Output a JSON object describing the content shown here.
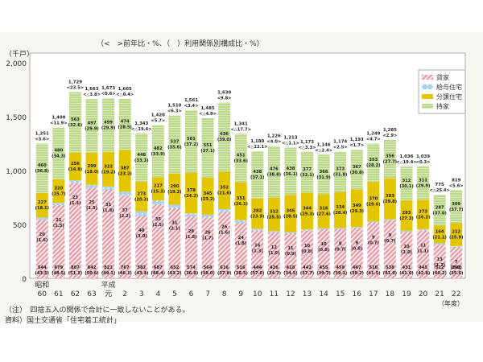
{
  "header_note": "（<　>前年比・%、（　）利用関係別構成比・%）",
  "notes": {
    "note1": "（注）　四捨五入の関係で合計に一致しないことがある。",
    "source": "資料）国土交通省「住宅着工統計」"
  },
  "chart_data": {
    "type": "bar",
    "stacked": true,
    "title": "",
    "ylabel": "（千戸）",
    "xlabel": "（年度）",
    "ylim": [
      0,
      2000
    ],
    "yticks": [
      0,
      500,
      1000,
      1500,
      2000
    ],
    "ytick_labels": [
      "0",
      "500",
      "1,000",
      "1,500",
      "2,000"
    ],
    "grid": false,
    "legend_position": "top-right",
    "era_labels": [
      {
        "label": "昭和",
        "at_index": 0
      },
      {
        "label": "平成",
        "at_index": 4
      }
    ],
    "categories": [
      "60",
      "61",
      "62",
      "63",
      "元",
      "2",
      "3",
      "4",
      "5",
      "6",
      "7",
      "8",
      "9",
      "10",
      "11",
      "12",
      "13",
      "14",
      "15",
      "16",
      "17",
      "18",
      "19",
      "20",
      "21",
      "22"
    ],
    "totals": [
      1251,
      1400,
      1729,
      1663,
      1673,
      1665,
      1343,
      1420,
      1510,
      1561,
      1485,
      1630,
      1341,
      1180,
      1226,
      1213,
      1173,
      1146,
      1174,
      1193,
      1249,
      1285,
      1036,
      1039,
      775,
      819
    ],
    "yoy": [
      "3.6",
      "11.9",
      "23.5",
      "△3.8",
      "0.6",
      "△0.4",
      "△19.4",
      "5.7",
      "6.3",
      "3.4",
      "△4.9",
      "9.8",
      "△17.7",
      "△12.1",
      "4.0",
      "△1.1",
      "△3.3",
      "△2.4",
      "2.5",
      "1.7",
      "4.7",
      "2.9",
      "△19.4",
      "0.3",
      "△25.4",
      "5.6"
    ],
    "series": [
      {
        "name": "貸家",
        "color": "#e8a0aa",
        "values": [
          544,
          679,
          887,
          842,
          821,
          767,
          582,
          687,
          652,
          574,
          564,
          616,
          516,
          444,
          426,
          418,
          442,
          455,
          459,
          467,
          518,
          538,
          431,
          445,
          312,
          292
        ],
        "shares": [
          "43.5",
          "48.5",
          "51.3",
          "50.6",
          "49.1",
          "46.1",
          "43.4",
          "48.4",
          "43.2",
          "36.8",
          "38.0",
          "37.8",
          "38.5",
          "37.6",
          "34.7",
          "34.5",
          "37.7",
          "39.7",
          "39.1",
          "39.2",
          "41.5",
          "41.9",
          "41.6",
          "42.8",
          "40.2",
          "35.6"
        ]
      },
      {
        "name": "給与住宅",
        "color": "#a8d0ee",
        "values": [
          20,
          21,
          23,
          25,
          31,
          37,
          40,
          35,
          31,
          28,
          26,
          26,
          24,
          16,
          12,
          11,
          10,
          10,
          8,
          9,
          9,
          9,
          10,
          11,
          13,
          7
        ],
        "shares": [
          "1.6",
          "1.5",
          "1.3",
          "1.5",
          "1.8",
          "2.2",
          "3.0",
          "2.5",
          "2.1",
          "1.8",
          "1.7",
          "1.6",
          "1.8",
          "1.3",
          "1.0",
          "0.9",
          "0.8",
          "0.8",
          "0.7",
          "0.8",
          "0.7",
          "0.7",
          "1.0",
          "1.1",
          "1.7",
          "0.8"
        ]
      },
      {
        "name": "分譲住宅",
        "color": "#e4c600",
        "values": [
          227,
          220,
          256,
          299,
          322,
          387,
          273,
          217,
          290,
          378,
          345,
          352,
          351,
          282,
          312,
          346,
          344,
          316,
          334,
          349,
          370,
          383,
          283,
          273,
          164,
          212
        ],
        "shares": [
          "18.1",
          "15.7",
          "14.8",
          "18.0",
          "19.2",
          "23.2",
          "20.3",
          "15.3",
          "19.2",
          "24.2",
          "23.2",
          "21.6",
          "26.1",
          "23.9",
          "25.5",
          "28.5",
          "29.3",
          "27.6",
          "28.4",
          "29.3",
          "29.6",
          "29.8",
          "27.3",
          "26.2",
          "21.1",
          "25.9"
        ]
      },
      {
        "name": "持家",
        "color": "#b4d27a",
        "values": [
          460,
          480,
          563,
          497,
          499,
          474,
          448,
          482,
          537,
          581,
          551,
          636,
          451,
          438,
          476,
          438,
          377,
          366,
          373,
          367,
          353,
          356,
          312,
          311,
          287,
          309
        ],
        "shares": [
          "36.8",
          "34.3",
          "32.6",
          "29.9",
          "29.9",
          "28.5",
          "33.3",
          "33.9",
          "35.6",
          "37.2",
          "37.1",
          "39.0",
          "33.6",
          "37.1",
          "38.8",
          "36.1",
          "32.1",
          "31.9",
          "31.8",
          "30.8",
          "28.2",
          "27.7",
          "30.1",
          "29.9",
          "37.0",
          "37.7"
        ]
      }
    ]
  }
}
